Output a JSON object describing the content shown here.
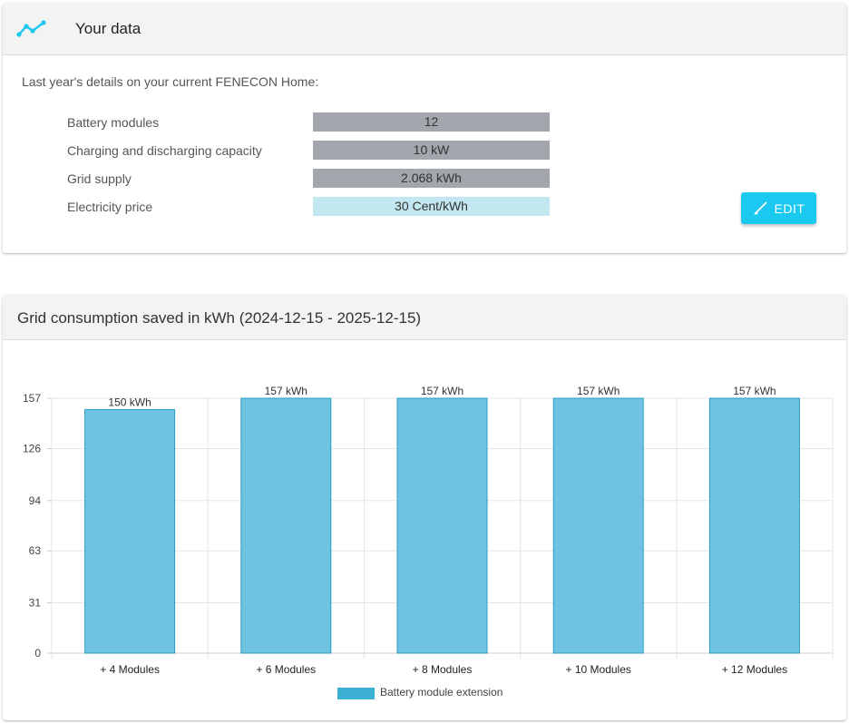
{
  "data_card": {
    "title": "Your data",
    "intro": "Last year's details on your current FENECON Home:",
    "rows": [
      {
        "label": "Battery modules",
        "value": "12"
      },
      {
        "label": "Charging and discharging capacity",
        "value": "10 kW"
      },
      {
        "label": "Grid supply",
        "value": "2.068 kWh"
      },
      {
        "label": "Electricity price",
        "value": "30 Cent/kWh"
      }
    ],
    "edit_label": "EDIT",
    "icons": {
      "header": "line-chart-icon",
      "edit": "pencil-icon"
    },
    "colors": {
      "value_bg": "#a3a6ad",
      "price_bg": "#c2e7f0",
      "accent": "#1bc9f0"
    }
  },
  "chart_card": {
    "title": "Grid consumption saved in kWh (2024-12-15 - 2025-12-15)"
  },
  "chart_data": {
    "type": "bar",
    "categories": [
      "+ 4 Modules",
      "+ 6 Modules",
      "+ 8 Modules",
      "+ 10 Modules",
      "+ 12 Modules"
    ],
    "series": [
      {
        "name": "Battery module extension",
        "values": [
          150,
          157,
          157,
          157,
          157
        ]
      }
    ],
    "data_labels": [
      "150 kWh",
      "157 kWh",
      "157 kWh",
      "157 kWh",
      "157 kWh"
    ],
    "yticks": [
      "0",
      "31",
      "63",
      "94",
      "126",
      "157"
    ],
    "ylim": [
      0,
      157
    ],
    "grid": true,
    "legend": "bottom",
    "colors": {
      "bar_fill": "#6fc3e0",
      "bar_stroke": "#2a9fc3",
      "legend": "#3bb0d3",
      "grid": "#e5e5e5"
    }
  }
}
